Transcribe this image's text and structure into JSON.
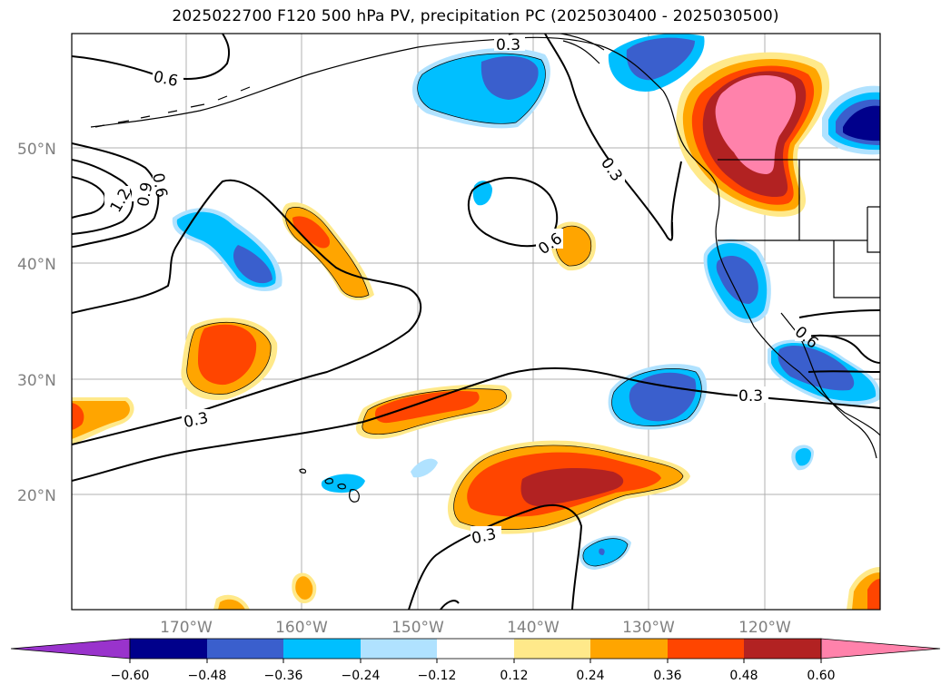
{
  "title": "2025022700 F120 500 hPa PV, precipitation PC (2025030400 - 2025030500)",
  "map": {
    "lat_labels": [
      "50°N",
      "40°N",
      "30°N",
      "20°N"
    ],
    "lon_labels": [
      "170°W",
      "160°W",
      "150°W",
      "140°W",
      "130°W",
      "120°W"
    ],
    "contour_labels": [
      "0.6",
      "0.3",
      "1.2",
      "0.9",
      "0.6",
      "0.3",
      "0.6",
      "0.3",
      "0.3",
      "0.3",
      "0.6"
    ],
    "land_color": "#ffffff",
    "coast_color": "#000000",
    "grid_color": "#b0b0b0"
  },
  "colorbar": {
    "colors": [
      "#9933cc",
      "#00008b",
      "#3a5fcd",
      "#00bfff",
      "#b0e2ff",
      "#ffffff",
      "#ffe98a",
      "#ffa500",
      "#ff4500",
      "#b22222",
      "#ff82ab"
    ],
    "tick_labels": [
      "−0.60",
      "−0.48",
      "−0.36",
      "−0.24",
      "−0.12",
      "0.12",
      "0.24",
      "0.36",
      "0.48",
      "0.60"
    ]
  }
}
